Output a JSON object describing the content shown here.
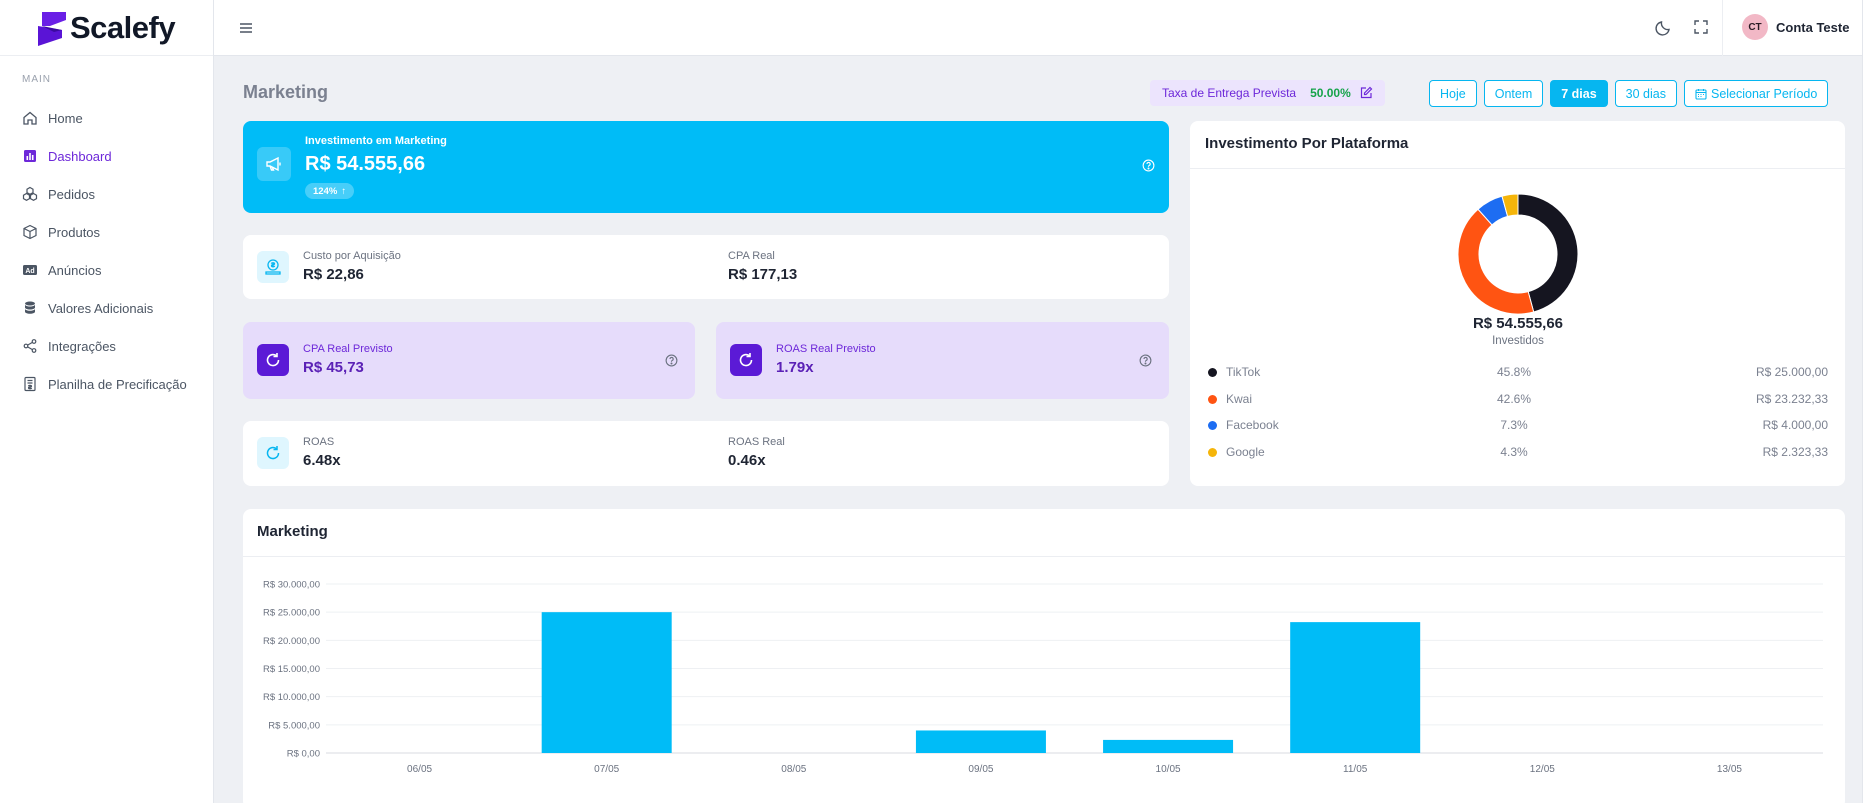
{
  "brand": {
    "name": "Scalefy"
  },
  "sidebar": {
    "section": "MAIN",
    "items": [
      {
        "label": "Home",
        "icon": "home-icon",
        "active": false
      },
      {
        "label": "Dashboard",
        "icon": "bar-chart-icon",
        "active": true
      },
      {
        "label": "Pedidos",
        "icon": "boxes-icon",
        "active": false
      },
      {
        "label": "Produtos",
        "icon": "package-icon",
        "active": false
      },
      {
        "label": "Anúncios",
        "icon": "ad-icon",
        "active": false
      },
      {
        "label": "Valores Adicionais",
        "icon": "database-icon",
        "active": false
      },
      {
        "label": "Integrações",
        "icon": "share-icon",
        "active": false
      },
      {
        "label": "Planilha de Precificação",
        "icon": "spreadsheet-icon",
        "active": false
      }
    ]
  },
  "header": {
    "user_initials": "CT",
    "user_name": "Conta Teste"
  },
  "page": {
    "title": "Marketing",
    "taxa_label": "Taxa de Entrega Prevista",
    "taxa_value": "50.00%",
    "ranges": [
      {
        "label": "Hoje",
        "active": false
      },
      {
        "label": "Ontem",
        "active": false
      },
      {
        "label": "7 dias",
        "active": true
      },
      {
        "label": "30 dias",
        "active": false
      },
      {
        "label": "Selecionar Período",
        "active": false
      }
    ]
  },
  "investimento": {
    "label": "Investimento em Marketing",
    "value": "R$ 54.555,66",
    "badge": "124%"
  },
  "cpa": {
    "custo_label": "Custo por Aquisição",
    "custo_value": "R$ 22,86",
    "real_label": "CPA Real",
    "real_value": "R$ 177,13"
  },
  "previsto": {
    "cpa_label": "CPA Real Previsto",
    "cpa_value": "R$ 45,73",
    "roas_label": "ROAS Real Previsto",
    "roas_value": "1.79x"
  },
  "roas": {
    "roas_label": "ROAS",
    "roas_value": "6.48x",
    "real_label": "ROAS Real",
    "real_value": "0.46x"
  },
  "plataforma": {
    "title": "Investimento Por Plataforma",
    "total": "R$ 54.555,66",
    "total_caption": "Investidos",
    "rows": [
      {
        "name": "TikTok",
        "pct": "45.8%",
        "value": "R$ 25.000,00",
        "color": "#151520",
        "share": 45.8
      },
      {
        "name": "Kwai",
        "pct": "42.6%",
        "value": "R$ 23.232,33",
        "color": "#ff5412",
        "share": 42.6
      },
      {
        "name": "Facebook",
        "pct": "7.3%",
        "value": "R$ 4.000,00",
        "color": "#1d6df2",
        "share": 7.3
      },
      {
        "name": "Google",
        "pct": "4.3%",
        "value": "R$ 2.323,33",
        "color": "#f5b50a",
        "share": 4.3
      }
    ]
  },
  "chart_section": {
    "title": "Marketing"
  },
  "chart_data": {
    "type": "bar",
    "title": "Marketing",
    "categories": [
      "06/05",
      "07/05",
      "08/05",
      "09/05",
      "10/05",
      "11/05",
      "12/05",
      "13/05"
    ],
    "values": [
      0,
      25000,
      0,
      4000,
      2323.33,
      23232.33,
      0,
      0
    ],
    "ylim": [
      0,
      30000
    ],
    "yticks": [
      "R$ 30.000,00",
      "R$ 25.000,00",
      "R$ 20.000,00",
      "R$ 15.000,00",
      "R$ 10.000,00",
      "R$ 5.000,00",
      "R$ 0,00"
    ],
    "color": "#00bcf7",
    "grid": true
  }
}
